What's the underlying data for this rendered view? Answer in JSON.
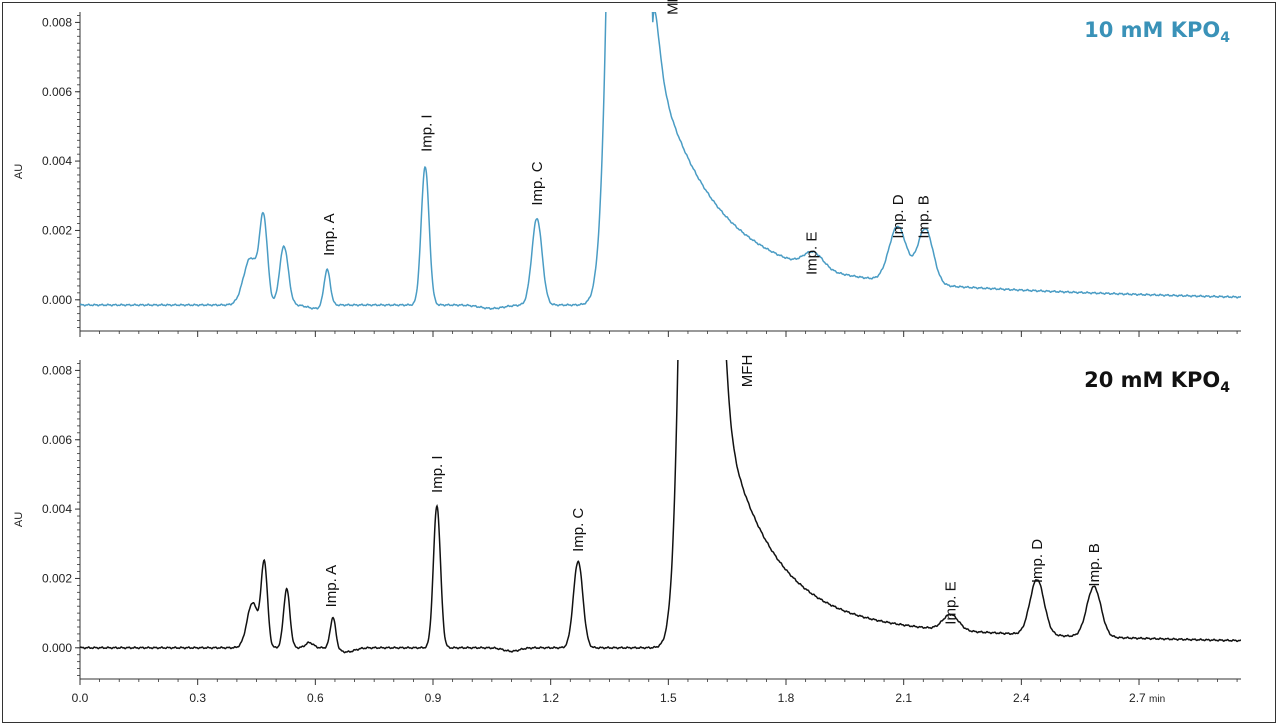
{
  "chart_data": [
    {
      "type": "line",
      "title": "10 mM KPO",
      "title_subscript": "4",
      "title_color": "#3a92b8",
      "line_color": "#4a9cc4",
      "ylabel": "AU",
      "xlabel": "",
      "ylim": [
        -0.0009,
        0.0083
      ],
      "xlim": [
        0.0,
        2.96
      ],
      "yticks": [
        "0.000",
        "0.002",
        "0.004",
        "0.006",
        "0.008"
      ],
      "ytick_values": [
        0.0,
        0.002,
        0.004,
        0.006,
        0.008
      ],
      "grid": false,
      "baseline": {
        "start": -0.00015,
        "end": -0.00015,
        "dip": [
          {
            "t": 0.6,
            "a": -0.0001,
            "w": 0.02
          },
          {
            "t": 1.05,
            "a": -0.0001,
            "w": 0.03
          }
        ]
      },
      "tail": {
        "t": 1.46,
        "amp": 0.006,
        "decay": 0.14,
        "slow_amp": 0.0012,
        "slow_decay": 0.9
      },
      "series": [
        {
          "peaks": [
            {
              "t": 0.435,
              "h": 0.00135,
              "w": 0.018
            },
            {
              "t": 0.468,
              "h": 0.0024,
              "w": 0.01
            },
            {
              "t": 0.52,
              "h": 0.0017,
              "w": 0.011
            },
            {
              "t": 0.63,
              "h": 0.00105,
              "w": 0.008
            },
            {
              "t": 0.88,
              "h": 0.004,
              "w": 0.01
            },
            {
              "t": 1.165,
              "h": 0.0025,
              "w": 0.013
            },
            {
              "t": 1.4,
              "h": 0.06,
              "w": 0.03
            },
            {
              "t": 1.87,
              "h": 0.00045,
              "w": 0.025
            },
            {
              "t": 2.085,
              "h": 0.0016,
              "w": 0.022
            },
            {
              "t": 2.155,
              "h": 0.0016,
              "w": 0.02
            }
          ]
        }
      ],
      "annotations": [
        {
          "text": "Imp. A",
          "x": 0.635,
          "y": 0.00115
        },
        {
          "text": "Imp. I",
          "x": 0.883,
          "y": 0.00415
        },
        {
          "text": "Imp. C",
          "x": 1.165,
          "y": 0.0026
        },
        {
          "text": "MFH",
          "x": 1.51,
          "y": 0.0081
        },
        {
          "text": "Imp. E",
          "x": 1.865,
          "y": 0.0006
        },
        {
          "text": "Imp. D",
          "x": 2.085,
          "y": 0.00165
        },
        {
          "text": "Imp. B",
          "x": 2.15,
          "y": 0.00165
        }
      ]
    },
    {
      "type": "line",
      "title": "20 mM KPO",
      "title_subscript": "4",
      "title_color": "#111111",
      "line_color": "#111111",
      "ylabel": "AU",
      "xlabel": "min",
      "ylim": [
        -0.0009,
        0.0083
      ],
      "xlim": [
        0.0,
        2.96
      ],
      "yticks": [
        "0.000",
        "0.002",
        "0.004",
        "0.006",
        "0.008"
      ],
      "ytick_values": [
        0.0,
        0.002,
        0.004,
        0.006,
        0.008
      ],
      "xticks": [
        "0.0",
        "0.3",
        "0.6",
        "0.9",
        "1.2",
        "1.5",
        "1.8",
        "2.1",
        "2.4",
        "2.7 min"
      ],
      "xtick_values": [
        0.0,
        0.3,
        0.6,
        0.9,
        1.2,
        1.5,
        1.8,
        2.1,
        2.4,
        2.7
      ],
      "grid": false,
      "baseline": {
        "start": 0.0,
        "end": 0.0,
        "dip": [
          {
            "t": 0.68,
            "a": -0.00012,
            "w": 0.02
          },
          {
            "t": 1.1,
            "a": -0.0001,
            "w": 0.02
          }
        ]
      },
      "tail": {
        "t": 1.63,
        "amp": 0.0062,
        "decay": 0.12,
        "slow_amp": 0.0009,
        "slow_decay": 0.9
      },
      "series": [
        {
          "peaks": [
            {
              "t": 0.44,
              "h": 0.0013,
              "w": 0.014
            },
            {
              "t": 0.47,
              "h": 0.0024,
              "w": 0.008
            },
            {
              "t": 0.527,
              "h": 0.0017,
              "w": 0.008
            },
            {
              "t": 0.585,
              "h": 0.00015,
              "w": 0.01
            },
            {
              "t": 0.645,
              "h": 0.0009,
              "w": 0.007
            },
            {
              "t": 0.91,
              "h": 0.0041,
              "w": 0.009
            },
            {
              "t": 1.27,
              "h": 0.0025,
              "w": 0.012
            },
            {
              "t": 1.58,
              "h": 0.06,
              "w": 0.028
            },
            {
              "t": 2.22,
              "h": 0.00045,
              "w": 0.02
            },
            {
              "t": 2.44,
              "h": 0.0016,
              "w": 0.018
            },
            {
              "t": 2.585,
              "h": 0.00145,
              "w": 0.018
            }
          ]
        }
      ],
      "annotations": [
        {
          "text": "Imp. A",
          "x": 0.64,
          "y": 0.00105
        },
        {
          "text": "Imp. I",
          "x": 0.91,
          "y": 0.00435
        },
        {
          "text": "Imp. C",
          "x": 1.27,
          "y": 0.00265
        },
        {
          "text": "MFH",
          "x": 1.7,
          "y": 0.0074
        },
        {
          "text": "Imp. E",
          "x": 2.22,
          "y": 0.00055
        },
        {
          "text": "Imp. D",
          "x": 2.44,
          "y": 0.00175
        },
        {
          "text": "Imp. B",
          "x": 2.585,
          "y": 0.00165
        }
      ]
    }
  ]
}
